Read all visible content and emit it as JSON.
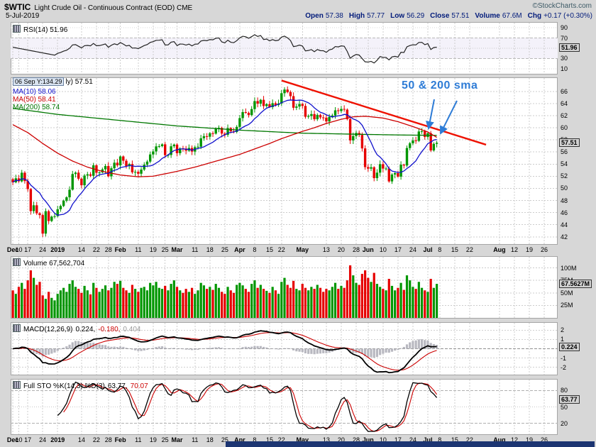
{
  "header": {
    "symbol": "$WTIC",
    "title": "Light Crude Oil - Continuous Contract (EOD) CME",
    "copyright": "©StockCharts.com",
    "date": "5-Jul-2019",
    "quote": [
      {
        "label": "Open",
        "value": "57.38"
      },
      {
        "label": "High",
        "value": "57.77"
      },
      {
        "label": "Low",
        "value": "56.29"
      },
      {
        "label": "Close",
        "value": "57.51"
      },
      {
        "label": "Volume",
        "value": "67.6M"
      },
      {
        "label": "Chg",
        "value": "+0.17 (+0.30%)"
      }
    ]
  },
  "rsi_panel": {
    "legend": "RSI(14) 51.96",
    "axis_ticks": [
      90,
      70,
      30,
      10
    ],
    "value_box": {
      "label": "51.96",
      "value": 51.96
    }
  },
  "price_panel": {
    "tooltip": "06 Sep Y:134.29",
    "legend_suffix": "ly) 57.51",
    "ma_legend": [
      {
        "label": "MA(10) 58.06",
        "color": "#1111cc"
      },
      {
        "label": "MA(50) 58.41",
        "color": "#cc0000"
      },
      {
        "label": "MA(200) 58.74",
        "color": "#007700"
      }
    ],
    "annotation": "50 & 200 sma",
    "annotation_color": "#2e7cd6",
    "axis_ticks": [
      66,
      64,
      62,
      60,
      58,
      56,
      54,
      52,
      50,
      48,
      46,
      44,
      42
    ],
    "value_box": {
      "label": "57.51",
      "value": 57.51
    }
  },
  "volume_panel": {
    "legend": "Volume 67,562,704",
    "axis_ticks": [
      {
        "label": "100M",
        "value": 100
      },
      {
        "label": "75M",
        "value": 75
      },
      {
        "label": "50M",
        "value": 50
      },
      {
        "label": "25M",
        "value": 25
      }
    ],
    "value_box": {
      "label": "67.5627M",
      "value": 67.56
    }
  },
  "macd_panel": {
    "legend_name": "MACD(12,26,9)",
    "legend_values": [
      {
        "text": "0.224,",
        "color": "#000000"
      },
      {
        "text": "-0.180,",
        "color": "#cc0000"
      },
      {
        "text": "0.404",
        "color": "#999999"
      }
    ],
    "axis_ticks": [
      2,
      1,
      -1,
      -2
    ],
    "value_box": {
      "label": "0.224",
      "value": 0.224
    }
  },
  "sto_panel": {
    "legend_name": "Full STO %K(14,3) %D(3)",
    "legend_values": [
      {
        "text": "63.77,",
        "color": "#000000"
      },
      {
        "text": "70.07",
        "color": "#cc0000"
      }
    ],
    "axis_ticks": [
      80,
      50,
      20
    ],
    "value_box": {
      "label": "63.77",
      "value": 63.77
    }
  },
  "date_axis": {
    "ticks": [
      {
        "label": "Dec",
        "slot": 0,
        "bold": true
      },
      {
        "label": "10",
        "slot": 2
      },
      {
        "label": "17",
        "slot": 5
      },
      {
        "label": "24",
        "slot": 10
      },
      {
        "label": "2019",
        "slot": 15,
        "bold": true
      },
      {
        "label": "14",
        "slot": 23
      },
      {
        "label": "22",
        "slot": 28
      },
      {
        "label": "28",
        "slot": 32
      },
      {
        "label": "Feb",
        "slot": 36,
        "bold": true
      },
      {
        "label": "11",
        "slot": 42
      },
      {
        "label": "19",
        "slot": 47
      },
      {
        "label": "25",
        "slot": 51
      },
      {
        "label": "Mar",
        "slot": 55,
        "bold": true
      },
      {
        "label": "11",
        "slot": 61
      },
      {
        "label": "18",
        "slot": 66
      },
      {
        "label": "25",
        "slot": 71
      },
      {
        "label": "Apr",
        "slot": 76,
        "bold": true
      },
      {
        "label": "8",
        "slot": 81
      },
      {
        "label": "15",
        "slot": 86
      },
      {
        "label": "22",
        "slot": 90
      },
      {
        "label": "May",
        "slot": 97,
        "bold": true
      },
      {
        "label": "13",
        "slot": 105
      },
      {
        "label": "20",
        "slot": 110
      },
      {
        "label": "28",
        "slot": 115
      },
      {
        "label": "Jun",
        "slot": 119,
        "bold": true
      },
      {
        "label": "10",
        "slot": 124
      },
      {
        "label": "17",
        "slot": 129
      },
      {
        "label": "24",
        "slot": 134
      },
      {
        "label": "Jul",
        "slot": 139,
        "bold": true
      },
      {
        "label": "8",
        "slot": 143
      },
      {
        "label": "15",
        "slot": 148
      },
      {
        "label": "22",
        "slot": 153
      },
      {
        "label": "Aug",
        "slot": 163,
        "bold": true
      },
      {
        "label": "12",
        "slot": 168
      },
      {
        "label": "19",
        "slot": 173
      },
      {
        "label": "26",
        "slot": 178
      }
    ]
  },
  "colors": {
    "up": "#009600",
    "down": "#e60000",
    "ma10": "#1111cc",
    "ma50": "#cc0000",
    "ma200": "#007700",
    "trendline": "#ee1100",
    "macd_line": "#000000",
    "macd_signal": "#cc0000",
    "macd_hist": "#b8b8c0",
    "sto_k": "#000000",
    "sto_d": "#cc0000",
    "rsi_line": "#222222"
  },
  "chart_data": {
    "type": "candlestick",
    "title": "$WTIC Light Crude Oil daily candles with RSI(14), Volume, MACD(12,26,9), Full Stochastics %K(14,3) %D(3)",
    "x_first_bar": "2018-12-10",
    "x_last_bar": "2019-07-05",
    "x_total_slots": 183,
    "bars": 143,
    "ylim": [
      42,
      66
    ],
    "rsi_ylim": [
      0,
      100
    ],
    "macd_ylim": [
      -2.8,
      2.8
    ],
    "sto_ylim": [
      0,
      100
    ],
    "volume_ylim_millions": [
      0,
      122
    ],
    "closes": [
      51.0,
      51.65,
      51.15,
      52.58,
      51.2,
      49.88,
      46.24,
      47.2,
      45.88,
      45.59,
      42.53,
      46.22,
      44.61,
      45.33,
      45.41,
      46.54,
      47.09,
      47.96,
      48.52,
      49.78,
      52.36,
      52.59,
      51.59,
      50.51,
      52.11,
      52.31,
      52.07,
      53.8,
      52.57,
      52.62,
      53.13,
      53.69,
      51.99,
      53.31,
      54.23,
      53.79,
      55.26,
      54.56,
      53.66,
      54.01,
      52.64,
      52.72,
      52.41,
      53.1,
      53.9,
      54.41,
      55.59,
      56.09,
      56.92,
      56.96,
      57.26,
      55.48,
      55.5,
      56.94,
      57.22,
      55.8,
      56.59,
      56.56,
      56.22,
      56.66,
      56.07,
      56.79,
      56.87,
      58.26,
      58.61,
      58.52,
      59.09,
      59.03,
      59.83,
      59.98,
      59.04,
      58.82,
      59.94,
      59.41,
      59.3,
      60.14,
      61.59,
      62.58,
      62.46,
      62.1,
      63.08,
      64.4,
      63.98,
      64.61,
      63.58,
      63.89,
      63.4,
      64.05,
      63.76,
      64.0,
      65.7,
      66.3,
      65.89,
      65.21,
      63.3,
      63.5,
      63.91,
      63.6,
      61.81,
      61.94,
      62.25,
      61.4,
      62.12,
      61.7,
      61.66,
      61.04,
      61.78,
      62.02,
      62.87,
      62.76,
      63.1,
      62.99,
      61.42,
      57.91,
      58.63,
      59.14,
      58.81,
      56.59,
      53.5,
      53.25,
      53.48,
      51.68,
      52.59,
      53.99,
      53.26,
      53.27,
      51.14,
      52.28,
      52.51,
      51.93,
      53.9,
      53.76,
      56.65,
      57.43,
      57.9,
      57.83,
      59.38,
      59.43,
      58.47,
      59.09,
      56.25,
      57.34,
      57.51
    ],
    "volumes_millions": [
      55,
      48,
      62,
      70,
      58,
      75,
      95,
      80,
      66,
      72,
      45,
      38,
      52,
      40,
      35,
      48,
      55,
      60,
      52,
      68,
      75,
      62,
      58,
      50,
      64,
      55,
      47,
      70,
      60,
      52,
      58,
      65,
      55,
      60,
      72,
      68,
      74,
      60,
      55,
      50,
      66,
      58,
      52,
      60,
      62,
      55,
      70,
      65,
      72,
      60,
      58,
      64,
      55,
      68,
      75,
      62,
      55,
      50,
      58,
      52,
      60,
      48,
      55,
      70,
      65,
      58,
      62,
      56,
      68,
      60,
      52,
      48,
      62,
      55,
      50,
      66,
      70,
      65,
      58,
      52,
      68,
      75,
      60,
      66,
      58,
      54,
      50,
      62,
      55,
      48,
      72,
      80,
      66,
      60,
      74,
      58,
      55,
      68,
      60,
      55,
      62,
      58,
      66,
      60,
      52,
      58,
      55,
      62,
      70,
      58,
      64,
      60,
      75,
      105,
      85,
      70,
      66,
      88,
      95,
      80,
      72,
      90,
      68,
      62,
      58,
      55,
      78,
      64,
      55,
      60,
      70,
      56,
      85,
      75,
      62,
      58,
      72,
      60,
      55,
      52,
      78,
      60,
      68
    ],
    "ma10_window": 10,
    "ma50_anchors": [
      [
        0,
        60.5
      ],
      [
        5,
        59.2
      ],
      [
        10,
        57.4
      ],
      [
        15,
        55.8
      ],
      [
        20,
        54.5
      ],
      [
        25,
        53.5
      ],
      [
        30,
        52.8
      ],
      [
        36,
        52.2
      ],
      [
        42,
        51.9
      ],
      [
        47,
        52.0
      ],
      [
        51,
        52.4
      ],
      [
        55,
        52.8
      ],
      [
        61,
        53.5
      ],
      [
        66,
        54.2
      ],
      [
        71,
        54.9
      ],
      [
        76,
        55.6
      ],
      [
        81,
        56.5
      ],
      [
        86,
        57.4
      ],
      [
        90,
        58.2
      ],
      [
        97,
        59.4
      ],
      [
        101,
        60.0
      ],
      [
        105,
        60.7
      ],
      [
        110,
        61.4
      ],
      [
        114,
        61.8
      ],
      [
        118,
        61.9
      ],
      [
        124,
        61.6
      ],
      [
        129,
        61.0
      ],
      [
        134,
        60.2
      ],
      [
        139,
        59.3
      ],
      [
        142,
        58.41
      ]
    ],
    "ma200_anchors": [
      [
        0,
        63.2
      ],
      [
        15,
        62.2
      ],
      [
        36,
        61.2
      ],
      [
        55,
        60.3
      ],
      [
        76,
        59.6
      ],
      [
        97,
        59.1
      ],
      [
        118,
        58.9
      ],
      [
        130,
        58.8
      ],
      [
        142,
        58.74
      ]
    ],
    "trendline": {
      "from_slot": 90,
      "from_price": 67.8,
      "to_slot": 158.5,
      "to_price": 57.2
    },
    "rsi_period": 14,
    "macd_params": [
      12,
      26,
      9
    ],
    "sto_params": "%K(14,3) %D(3)"
  }
}
